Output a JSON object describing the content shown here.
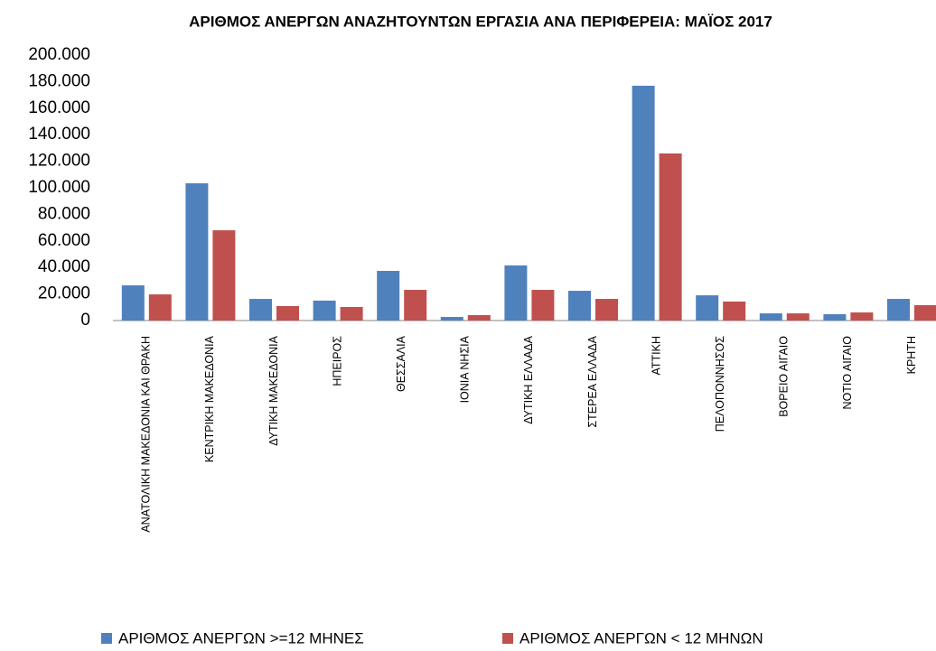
{
  "chart_data": {
    "type": "bar",
    "title": "ΑΡΙΘΜΟΣ ΑΝΕΡΓΩΝ ΑΝΑΖΗΤΟΥΝΤΩΝ ΕΡΓΑΣΙΑ ΑΝΑ ΠΕΡΙΦΕΡΕΙΑ:  ΜΑΪΟΣ 2017",
    "categories": [
      "ΑΝΑΤΟΛΙΚΗ ΜΑΚΕΔΟΝΙΑ ΚΑΙ ΘΡΑΚΗ",
      "ΚΕΝΤΡΙΚΗ ΜΑΚΕΔΟΝΙΑ",
      "ΔΥΤΙΚΗ ΜΑΚΕΔΟΝΙΑ",
      "ΗΠΕΙΡΟΣ",
      "ΘΕΣΣΑΛΙΑ",
      "ΙΟΝΙΑ ΝΗΣΙΑ",
      "ΔΥΤΙΚΗ ΕΛΛΑΔΑ",
      "ΣΤΕΡΕΑ ΕΛΛΑΔΑ",
      "ΑΤΤΙΚΗ",
      "ΠΕΛΟΠΟΝΝΗΣΟΣ",
      "ΒΟΡΕΙΟ ΑΙΓΑΙΟ",
      "ΝΟΤΙΟ ΑΙΓΑΙΟ",
      "ΚΡΗΤΗ"
    ],
    "series": [
      {
        "name": "ΑΡΙΘΜΟΣ ΑΝΕΡΓΩΝ >=12 ΜΗΝΕΣ",
        "color": "#4f81bd",
        "values": [
          26500,
          103400,
          16300,
          15000,
          37400,
          2700,
          41500,
          22400,
          176900,
          19000,
          5400,
          4800,
          16300
        ]
      },
      {
        "name": "ΑΡΙΘΜΟΣ ΑΝΕΡΓΩΝ < 12 ΜΗΝΩΝ",
        "color": "#c0504d",
        "values": [
          19700,
          68000,
          10900,
          10200,
          23100,
          4100,
          23100,
          16300,
          125900,
          14300,
          5400,
          6100,
          11600
        ]
      }
    ],
    "ylim": [
      0,
      200000
    ],
    "yticks": [
      0,
      {
        "value": 20000,
        "label": "20.000"
      },
      {
        "value": 40000,
        "label": "40.000"
      },
      {
        "value": 60000,
        "label": "60.000"
      },
      {
        "value": 80000,
        "label": "80.000"
      },
      {
        "value": 100000,
        "label": "100.000"
      },
      {
        "value": 120000,
        "label": "120.000"
      },
      {
        "value": 140000,
        "label": "140.000"
      },
      {
        "value": 160000,
        "label": "160.000"
      },
      {
        "value": 180000,
        "label": "180.000"
      },
      {
        "value": 200000,
        "label": "200.000"
      }
    ],
    "grid": false
  }
}
